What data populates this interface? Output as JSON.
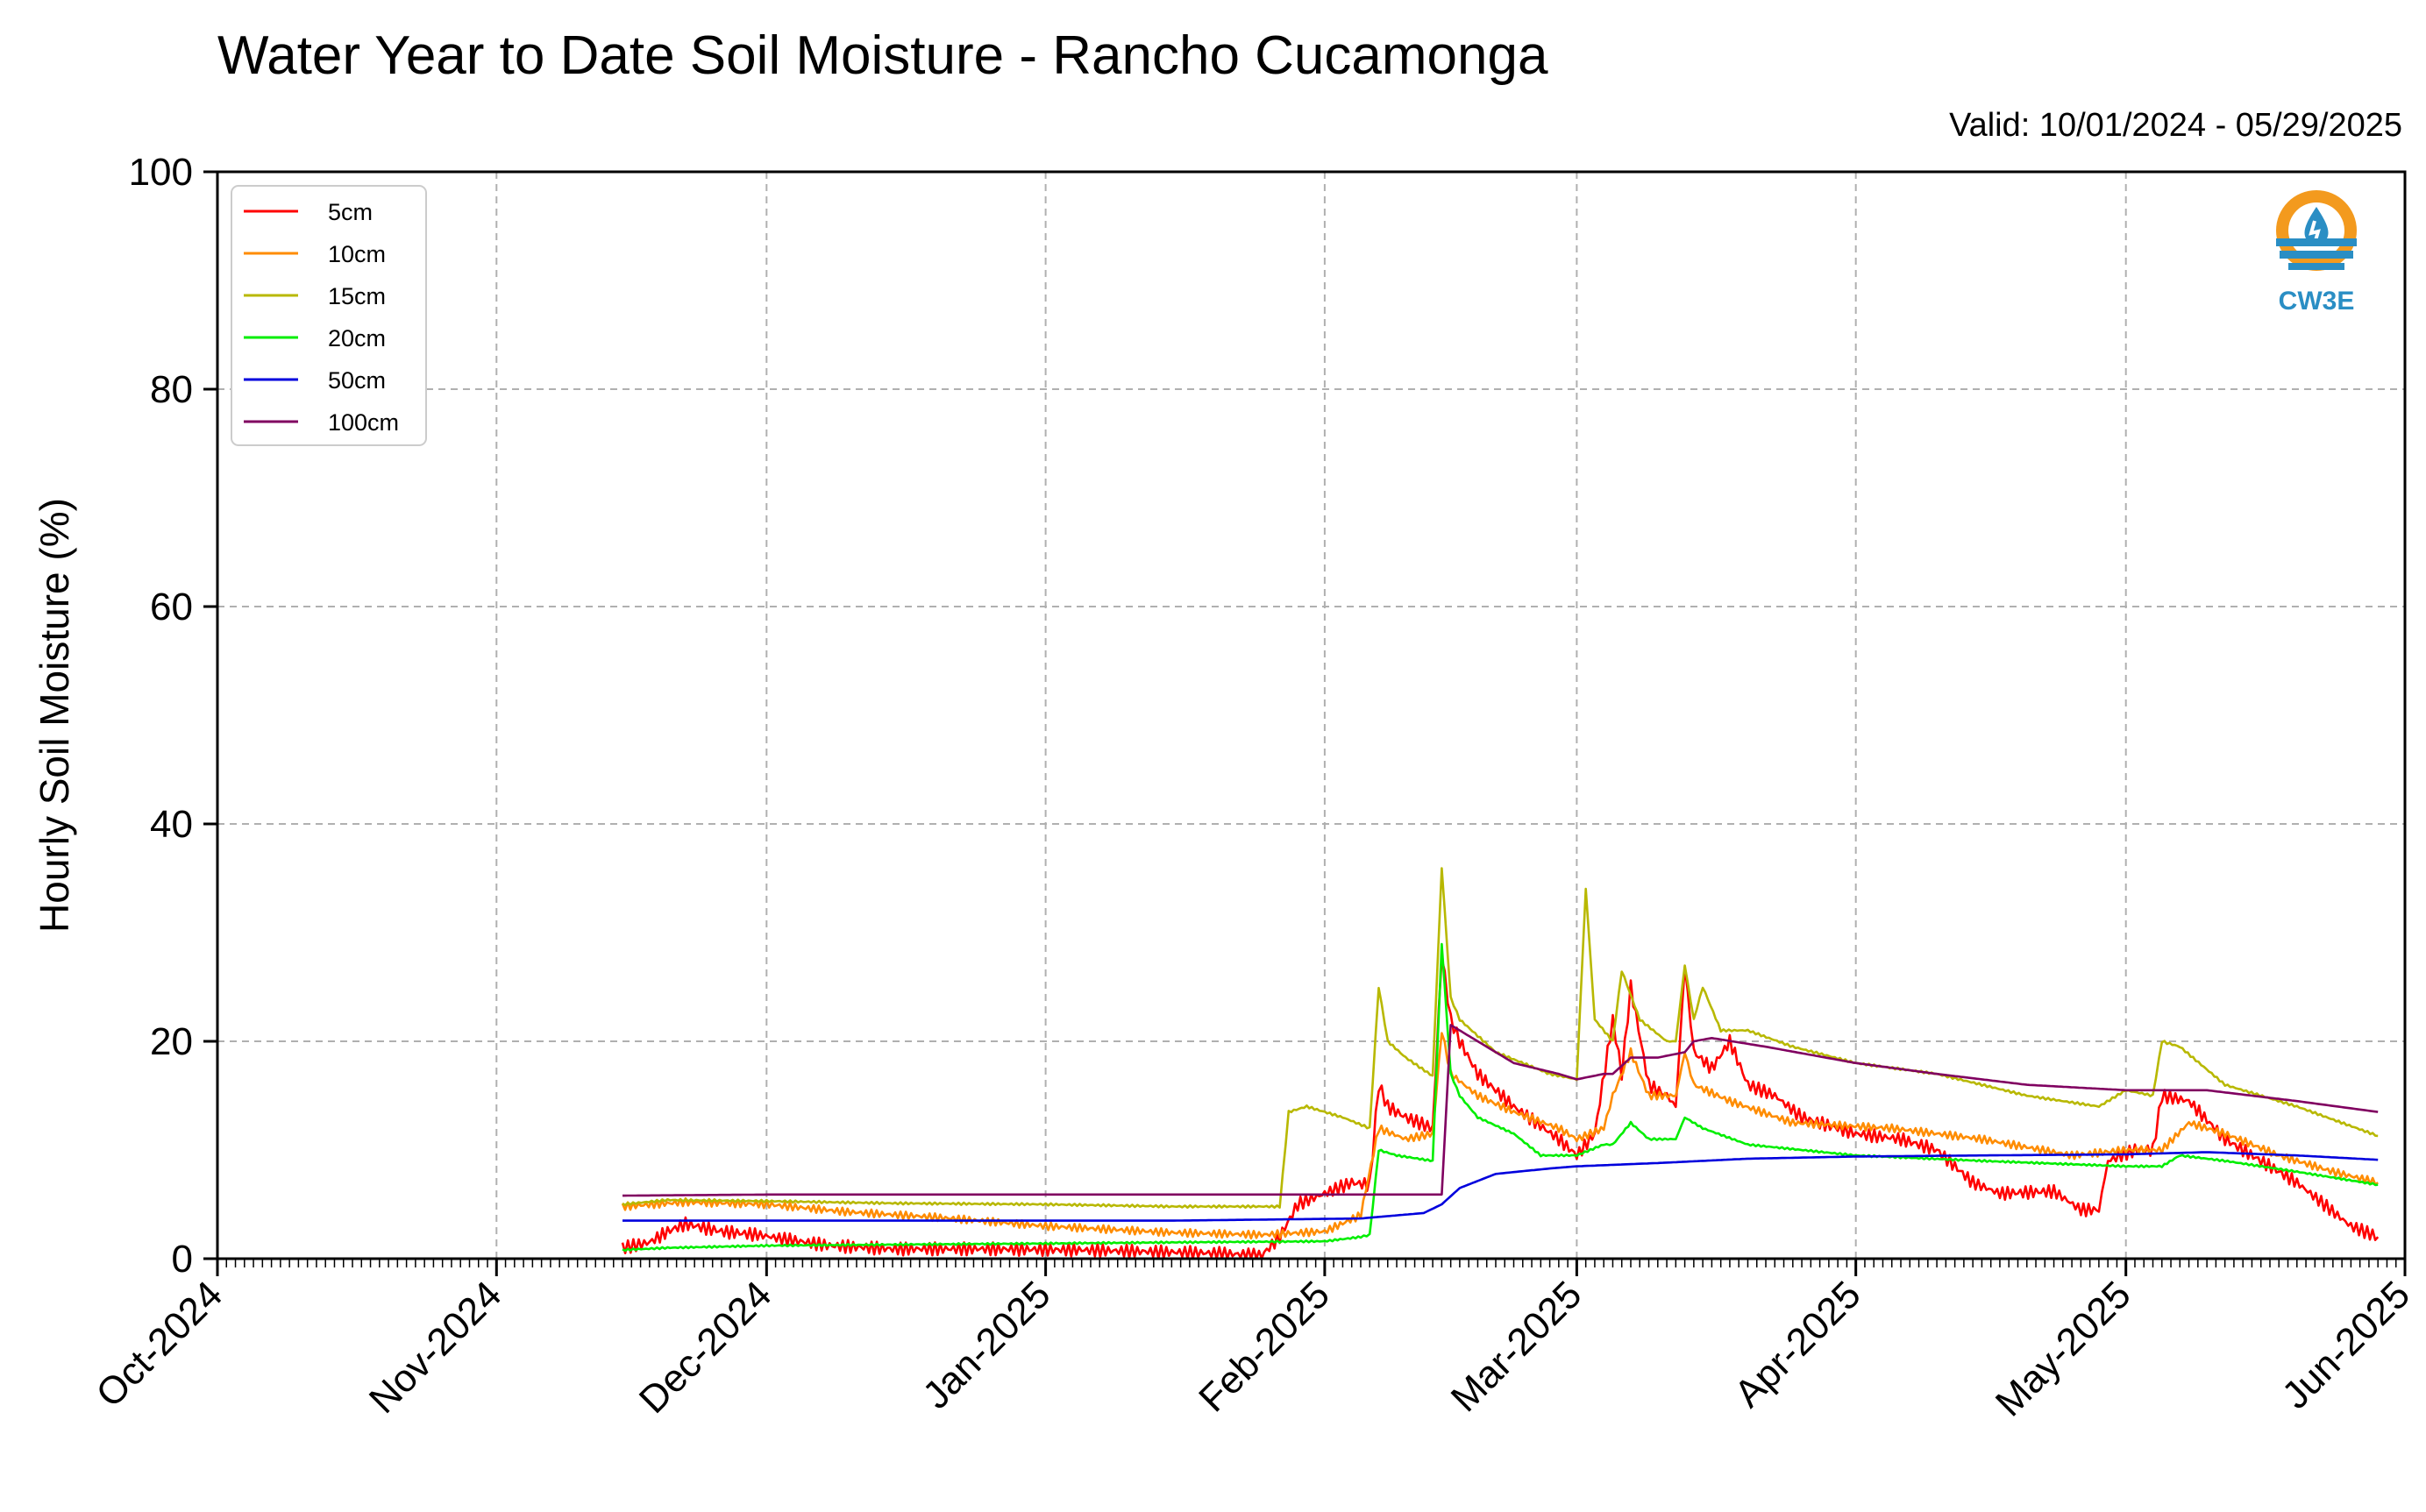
{
  "header": {
    "title": "Water Year to Date Soil Moisture - Rancho Cucamonga",
    "valid": "Valid: 10/01/2024 - 05/29/2025"
  },
  "logo": {
    "text": "CW3E",
    "icon": "cw3e-water-drop-logo-icon",
    "colors": {
      "ring": "#f39a1e",
      "waves": "#2a8ec4"
    }
  },
  "chart_data": {
    "type": "line",
    "title": "Water Year to Date Soil Moisture - Rancho Cucamonga",
    "ylabel": "Hourly Soil Moisture (%)",
    "xlabel": "",
    "xlim": [
      "2024-10-01",
      "2025-06-01"
    ],
    "ylim": [
      0,
      100
    ],
    "grid": true,
    "legend_position": "top-left",
    "x_ticks": [
      {
        "date": "2024-10-01",
        "label": "Oct-2024"
      },
      {
        "date": "2024-11-01",
        "label": "Nov-2024"
      },
      {
        "date": "2024-12-01",
        "label": "Dec-2024"
      },
      {
        "date": "2025-01-01",
        "label": "Jan-2025"
      },
      {
        "date": "2025-02-01",
        "label": "Feb-2025"
      },
      {
        "date": "2025-03-01",
        "label": "Mar-2025"
      },
      {
        "date": "2025-04-01",
        "label": "Apr-2025"
      },
      {
        "date": "2025-05-01",
        "label": "May-2025"
      },
      {
        "date": "2025-06-01",
        "label": "Jun-2025"
      }
    ],
    "y_ticks": [
      {
        "value": 0,
        "label": "0"
      },
      {
        "value": 20,
        "label": "20"
      },
      {
        "value": 40,
        "label": "40"
      },
      {
        "value": 60,
        "label": "60"
      },
      {
        "value": 80,
        "label": "80"
      },
      {
        "value": 100,
        "label": "100"
      }
    ],
    "series": [
      {
        "name": "5cm",
        "color": "#ff0000",
        "points": [
          [
            "2024-11-15",
            1
          ],
          [
            "2024-11-18",
            1.5
          ],
          [
            "2024-11-20",
            2.5
          ],
          [
            "2024-11-22",
            3.2
          ],
          [
            "2024-11-26",
            2.5
          ],
          [
            "2024-11-30",
            2.2
          ],
          [
            "2024-12-03",
            1.8
          ],
          [
            "2024-12-08",
            1.2
          ],
          [
            "2024-12-15",
            0.9
          ],
          [
            "2024-12-25",
            0.9
          ],
          [
            "2025-01-05",
            0.8
          ],
          [
            "2025-01-15",
            0.6
          ],
          [
            "2025-01-20",
            0.5
          ],
          [
            "2025-01-25",
            0.3
          ],
          [
            "2025-01-27",
            2
          ],
          [
            "2025-01-29",
            5
          ],
          [
            "2025-02-01",
            6
          ],
          [
            "2025-02-04",
            7
          ],
          [
            "2025-02-06",
            6.8
          ],
          [
            "2025-02-07",
            16
          ],
          [
            "2025-02-08",
            14
          ],
          [
            "2025-02-10",
            13
          ],
          [
            "2025-02-13",
            12
          ],
          [
            "2025-02-14",
            28
          ],
          [
            "2025-02-15",
            22
          ],
          [
            "2025-02-16",
            20
          ],
          [
            "2025-02-18",
            17
          ],
          [
            "2025-02-22",
            14
          ],
          [
            "2025-02-27",
            11
          ],
          [
            "2025-03-01",
            9.5
          ],
          [
            "2025-03-03",
            11.5
          ],
          [
            "2025-03-05",
            22
          ],
          [
            "2025-03-06",
            17
          ],
          [
            "2025-03-07",
            25
          ],
          [
            "2025-03-09",
            16
          ],
          [
            "2025-03-11",
            15
          ],
          [
            "2025-03-12",
            14
          ],
          [
            "2025-03-13",
            27
          ],
          [
            "2025-03-14",
            19
          ],
          [
            "2025-03-16",
            17.5
          ],
          [
            "2025-03-18",
            20
          ],
          [
            "2025-03-20",
            16
          ],
          [
            "2025-03-23",
            15
          ],
          [
            "2025-03-26",
            13
          ],
          [
            "2025-04-01",
            11.5
          ],
          [
            "2025-04-06",
            11
          ],
          [
            "2025-04-10",
            10
          ],
          [
            "2025-04-14",
            7
          ],
          [
            "2025-04-17",
            6
          ],
          [
            "2025-04-23",
            6.2
          ],
          [
            "2025-04-26",
            4.5
          ],
          [
            "2025-04-28",
            4.5
          ],
          [
            "2025-04-29",
            9
          ],
          [
            "2025-05-02",
            10
          ],
          [
            "2025-05-04",
            10
          ],
          [
            "2025-05-05",
            15
          ],
          [
            "2025-05-08",
            14.5
          ],
          [
            "2025-05-12",
            11
          ],
          [
            "2025-05-16",
            9
          ],
          [
            "2025-05-20",
            7
          ],
          [
            "2025-05-23",
            5
          ],
          [
            "2025-05-26",
            3
          ],
          [
            "2025-05-29",
            2
          ]
        ]
      },
      {
        "name": "10cm",
        "color": "#ff8c00",
        "points": [
          [
            "2024-11-15",
            4.8
          ],
          [
            "2024-11-22",
            5.2
          ],
          [
            "2024-12-01",
            5
          ],
          [
            "2024-12-10",
            4.3
          ],
          [
            "2024-12-20",
            3.8
          ],
          [
            "2025-01-01",
            3
          ],
          [
            "2025-01-15",
            2.4
          ],
          [
            "2025-01-25",
            2.2
          ],
          [
            "2025-02-01",
            2.5
          ],
          [
            "2025-02-05",
            4
          ],
          [
            "2025-02-07",
            12
          ],
          [
            "2025-02-10",
            11
          ],
          [
            "2025-02-13",
            11.5
          ],
          [
            "2025-02-14",
            21
          ],
          [
            "2025-02-15",
            17
          ],
          [
            "2025-02-18",
            15
          ],
          [
            "2025-02-22",
            13.5
          ],
          [
            "2025-02-27",
            12
          ],
          [
            "2025-03-01",
            11
          ],
          [
            "2025-03-04",
            12
          ],
          [
            "2025-03-05",
            15
          ],
          [
            "2025-03-07",
            19
          ],
          [
            "2025-03-09",
            15
          ],
          [
            "2025-03-12",
            15
          ],
          [
            "2025-03-13",
            19
          ],
          [
            "2025-03-14",
            16
          ],
          [
            "2025-03-18",
            14.5
          ],
          [
            "2025-03-25",
            12.5
          ],
          [
            "2025-04-05",
            12
          ],
          [
            "2025-04-15",
            11
          ],
          [
            "2025-04-25",
            9.5
          ],
          [
            "2025-05-01",
            10
          ],
          [
            "2025-05-05",
            10
          ],
          [
            "2025-05-08",
            12.5
          ],
          [
            "2025-05-12",
            11.5
          ],
          [
            "2025-05-18",
            9.5
          ],
          [
            "2025-05-24",
            8
          ],
          [
            "2025-05-29",
            7
          ]
        ]
      },
      {
        "name": "15cm",
        "color": "#b8b800",
        "points": [
          [
            "2024-11-15",
            5
          ],
          [
            "2024-11-20",
            5.4
          ],
          [
            "2024-12-01",
            5.3
          ],
          [
            "2024-12-15",
            5.1
          ],
          [
            "2025-01-01",
            5
          ],
          [
            "2025-01-15",
            4.8
          ],
          [
            "2025-01-27",
            4.8
          ],
          [
            "2025-01-28",
            13.5
          ],
          [
            "2025-01-30",
            14
          ],
          [
            "2025-02-03",
            13
          ],
          [
            "2025-02-06",
            12
          ],
          [
            "2025-02-07",
            25
          ],
          [
            "2025-02-08",
            20
          ],
          [
            "2025-02-10",
            18.5
          ],
          [
            "2025-02-13",
            16.8
          ],
          [
            "2025-02-14",
            36
          ],
          [
            "2025-02-15",
            24
          ],
          [
            "2025-02-16",
            22
          ],
          [
            "2025-02-20",
            19
          ],
          [
            "2025-02-26",
            17
          ],
          [
            "2025-03-01",
            16.5
          ],
          [
            "2025-03-02",
            34
          ],
          [
            "2025-03-03",
            22
          ],
          [
            "2025-03-05",
            20
          ],
          [
            "2025-03-06",
            26.5
          ],
          [
            "2025-03-08",
            22
          ],
          [
            "2025-03-11",
            20
          ],
          [
            "2025-03-12",
            20
          ],
          [
            "2025-03-13",
            27
          ],
          [
            "2025-03-14",
            22
          ],
          [
            "2025-03-15",
            25
          ],
          [
            "2025-03-17",
            21
          ],
          [
            "2025-03-20",
            21
          ],
          [
            "2025-03-25",
            19.5
          ],
          [
            "2025-04-01",
            18
          ],
          [
            "2025-04-10",
            17
          ],
          [
            "2025-04-20",
            15
          ],
          [
            "2025-04-28",
            14
          ],
          [
            "2025-05-01",
            15.5
          ],
          [
            "2025-05-04",
            15
          ],
          [
            "2025-05-05",
            20
          ],
          [
            "2025-05-07",
            19.5
          ],
          [
            "2025-05-12",
            16
          ],
          [
            "2025-05-20",
            14
          ],
          [
            "2025-05-29",
            11.3
          ]
        ]
      },
      {
        "name": "20cm",
        "color": "#00ee00",
        "points": [
          [
            "2024-11-15",
            0.8
          ],
          [
            "2024-11-20",
            1
          ],
          [
            "2024-12-01",
            1.2
          ],
          [
            "2024-12-15",
            1.3
          ],
          [
            "2025-01-01",
            1.4
          ],
          [
            "2025-01-15",
            1.5
          ],
          [
            "2025-02-01",
            1.6
          ],
          [
            "2025-02-05",
            2
          ],
          [
            "2025-02-06",
            2.2
          ],
          [
            "2025-02-07",
            10
          ],
          [
            "2025-02-09",
            9.5
          ],
          [
            "2025-02-13",
            9
          ],
          [
            "2025-02-14",
            29
          ],
          [
            "2025-02-15",
            17
          ],
          [
            "2025-02-16",
            15
          ],
          [
            "2025-02-18",
            13
          ],
          [
            "2025-02-22",
            11.5
          ],
          [
            "2025-02-25",
            9.5
          ],
          [
            "2025-03-01",
            9.5
          ],
          [
            "2025-03-04",
            10.5
          ],
          [
            "2025-03-05",
            10.5
          ],
          [
            "2025-03-07",
            12.5
          ],
          [
            "2025-03-09",
            11
          ],
          [
            "2025-03-12",
            11
          ],
          [
            "2025-03-13",
            13
          ],
          [
            "2025-03-15",
            12
          ],
          [
            "2025-03-20",
            10.5
          ],
          [
            "2025-04-01",
            9.5
          ],
          [
            "2025-04-15",
            9
          ],
          [
            "2025-05-01",
            8.5
          ],
          [
            "2025-05-05",
            8.5
          ],
          [
            "2025-05-07",
            9.5
          ],
          [
            "2025-05-12",
            9
          ],
          [
            "2025-05-20",
            8
          ],
          [
            "2025-05-29",
            6.8
          ]
        ]
      },
      {
        "name": "50cm",
        "color": "#0000dd",
        "points": [
          [
            "2024-11-15",
            3.5
          ],
          [
            "2024-12-15",
            3.5
          ],
          [
            "2025-01-15",
            3.5
          ],
          [
            "2025-02-05",
            3.7
          ],
          [
            "2025-02-12",
            4.2
          ],
          [
            "2025-02-14",
            5
          ],
          [
            "2025-02-16",
            6.5
          ],
          [
            "2025-02-20",
            7.8
          ],
          [
            "2025-02-26",
            8.3
          ],
          [
            "2025-03-01",
            8.5
          ],
          [
            "2025-03-10",
            8.8
          ],
          [
            "2025-03-20",
            9.2
          ],
          [
            "2025-04-01",
            9.4
          ],
          [
            "2025-04-15",
            9.5
          ],
          [
            "2025-05-01",
            9.6
          ],
          [
            "2025-05-10",
            9.8
          ],
          [
            "2025-05-20",
            9.5
          ],
          [
            "2025-05-29",
            9.1
          ]
        ]
      },
      {
        "name": "100cm",
        "color": "#800060",
        "points": [
          [
            "2024-11-15",
            5.8
          ],
          [
            "2024-12-01",
            5.9
          ],
          [
            "2025-01-01",
            5.9
          ],
          [
            "2025-02-01",
            5.9
          ],
          [
            "2025-02-14",
            5.9
          ],
          [
            "2025-02-15",
            21.5
          ],
          [
            "2025-02-18",
            20
          ],
          [
            "2025-02-22",
            18
          ],
          [
            "2025-02-27",
            17
          ],
          [
            "2025-03-01",
            16.5
          ],
          [
            "2025-03-04",
            17
          ],
          [
            "2025-03-05",
            17
          ],
          [
            "2025-03-07",
            18.5
          ],
          [
            "2025-03-10",
            18.5
          ],
          [
            "2025-03-13",
            19
          ],
          [
            "2025-03-14",
            20
          ],
          [
            "2025-03-16",
            20.3
          ],
          [
            "2025-03-22",
            19.5
          ],
          [
            "2025-04-01",
            18
          ],
          [
            "2025-04-10",
            17
          ],
          [
            "2025-04-20",
            16
          ],
          [
            "2025-05-01",
            15.5
          ],
          [
            "2025-05-10",
            15.5
          ],
          [
            "2025-05-20",
            14.5
          ],
          [
            "2025-05-29",
            13.5
          ]
        ]
      }
    ]
  }
}
